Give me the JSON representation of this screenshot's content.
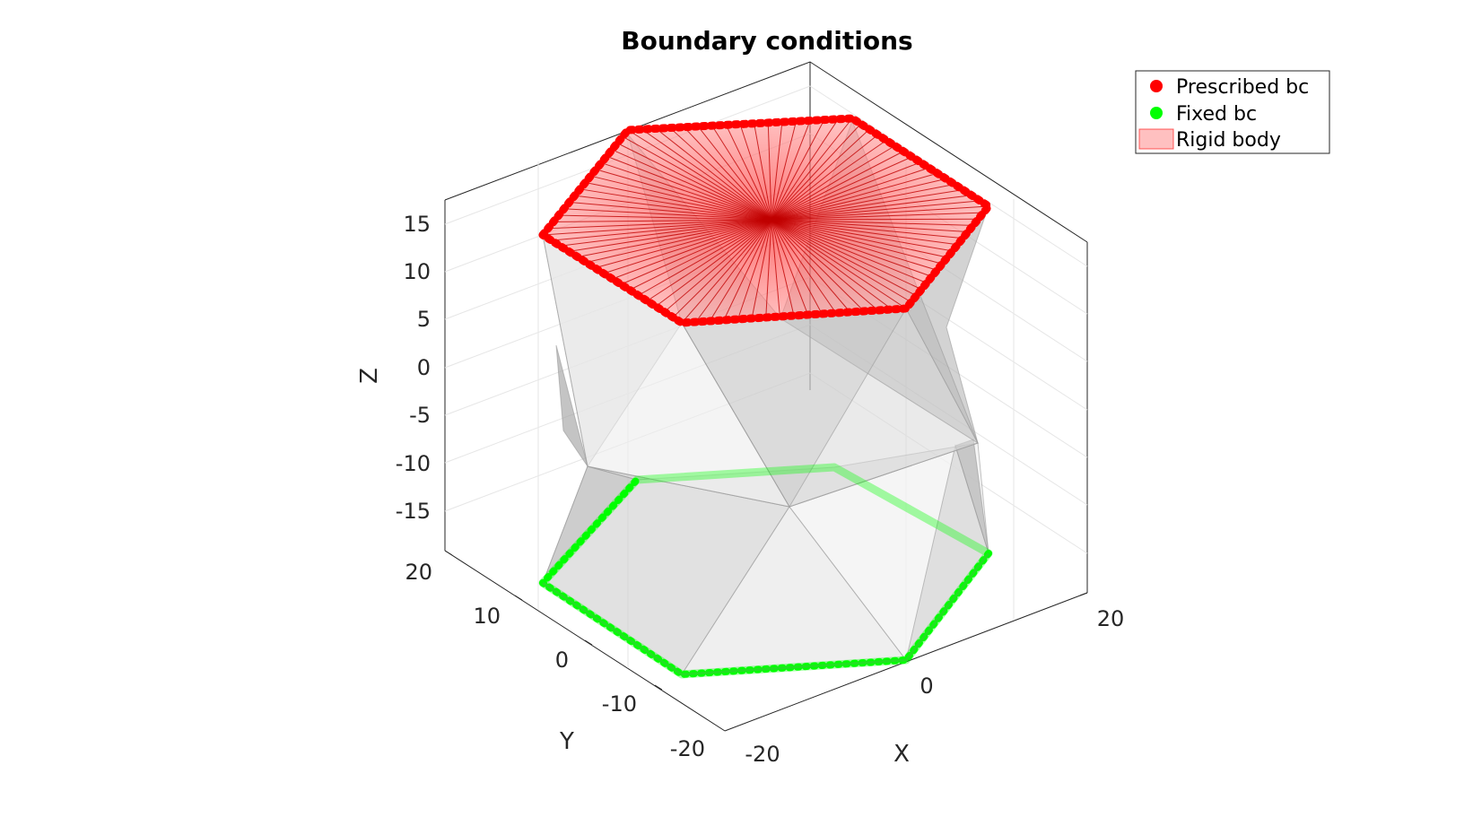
{
  "title": "Boundary conditions",
  "axes": {
    "xlabel": "X",
    "ylabel": "Y",
    "zlabel": "Z",
    "x_ticks": [
      "-20",
      "0",
      "20"
    ],
    "y_ticks": [
      "20",
      "10",
      "0",
      "-10",
      "-20"
    ],
    "z_ticks": [
      "15",
      "10",
      "5",
      "0",
      "-5",
      "-10",
      "-15"
    ]
  },
  "legend": [
    {
      "label": "Prescribed bc",
      "color": "#ff0000",
      "marker": "dot"
    },
    {
      "label": "Fixed bc",
      "color": "#00ff00",
      "marker": "dot"
    },
    {
      "label": "Rigid body",
      "color": "#ffc0c0",
      "marker": "patch"
    }
  ],
  "colors": {
    "prescribed": "#ff0000",
    "fixed": "#00ff00",
    "mesh": "#b0b0b0",
    "rigid_body_fill": "#ff8080"
  }
}
